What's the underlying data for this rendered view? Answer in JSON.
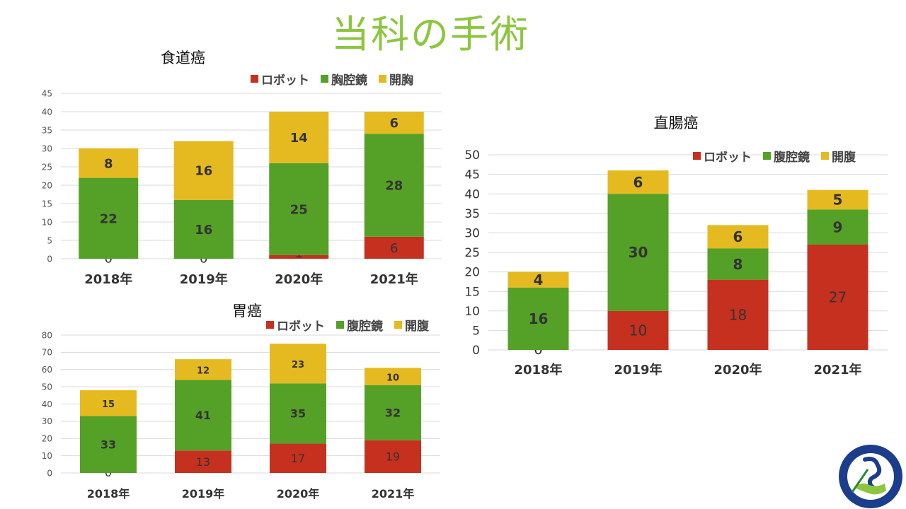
{
  "title": "当科の手術",
  "colors": {
    "robot": "#c5301f",
    "scope": "#55a026",
    "open": "#e5ba21",
    "title": "#8cc63e"
  },
  "chart_data": [
    {
      "id": "esophageal",
      "type": "bar",
      "stacked": true,
      "title": "食道癌",
      "categories": [
        "2018年",
        "2019年",
        "2020年",
        "2021年"
      ],
      "series": [
        {
          "name": "ロボット",
          "color": "#c5301f",
          "values": [
            0,
            0,
            1,
            6
          ]
        },
        {
          "name": "胸腔鏡",
          "color": "#55a026",
          "values": [
            22,
            16,
            25,
            28
          ]
        },
        {
          "name": "開胸",
          "color": "#e5ba21",
          "values": [
            8,
            16,
            14,
            6
          ]
        }
      ],
      "ylim": [
        0,
        45
      ],
      "yticks": [
        0,
        5,
        10,
        15,
        20,
        25,
        30,
        35,
        40,
        45
      ],
      "legend": "top-right",
      "grid": true
    },
    {
      "id": "gastric",
      "type": "bar",
      "stacked": true,
      "title": "胃癌",
      "categories": [
        "2018年",
        "2019年",
        "2020年",
        "2021年"
      ],
      "series": [
        {
          "name": "ロボット",
          "color": "#c5301f",
          "values": [
            0,
            13,
            17,
            19
          ]
        },
        {
          "name": "腹腔鏡",
          "color": "#55a026",
          "values": [
            33,
            41,
            35,
            32
          ]
        },
        {
          "name": "開腹",
          "color": "#e5ba21",
          "values": [
            15,
            12,
            23,
            10
          ]
        }
      ],
      "ylim": [
        0,
        80
      ],
      "yticks": [
        0,
        10,
        20,
        30,
        40,
        50,
        60,
        70,
        80
      ],
      "legend": "top-right",
      "grid": true
    },
    {
      "id": "rectal",
      "type": "bar",
      "stacked": true,
      "title": "直腸癌",
      "categories": [
        "2018年",
        "2019年",
        "2020年",
        "2021年"
      ],
      "series": [
        {
          "name": "ロボット",
          "color": "#c5301f",
          "values": [
            0,
            10,
            18,
            27
          ]
        },
        {
          "name": "腹腔鏡",
          "color": "#55a026",
          "values": [
            16,
            30,
            8,
            9
          ]
        },
        {
          "name": "開腹",
          "color": "#e5ba21",
          "values": [
            4,
            6,
            6,
            5
          ]
        }
      ],
      "ylim": [
        0,
        50
      ],
      "yticks": [
        0,
        5,
        10,
        15,
        20,
        25,
        30,
        35,
        40,
        45,
        50
      ],
      "legend": "top-right",
      "grid": true
    }
  ]
}
